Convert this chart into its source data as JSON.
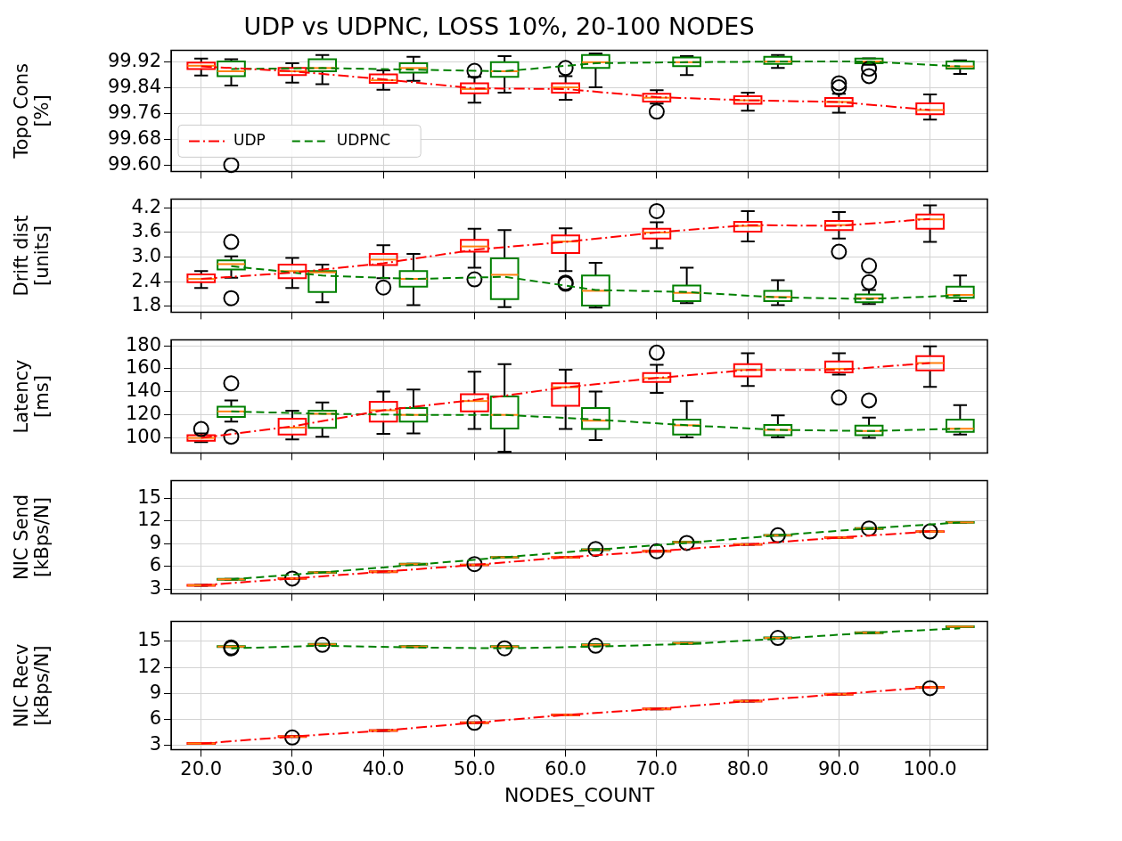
{
  "chart_data": [
    {
      "type": "box",
      "title": "UDP vs UDPNC, LOSS 10%, 20-100 NODES",
      "ylabel": "Topo Cons\n[%]",
      "xlim": [
        16.7,
        106.3
      ],
      "xticks": [
        {
          "value": 20,
          "label": null
        },
        {
          "value": 30,
          "label": null
        },
        {
          "value": 40,
          "label": null
        },
        {
          "value": 50,
          "label": null
        },
        {
          "value": 60,
          "label": null
        },
        {
          "value": 70,
          "label": null
        },
        {
          "value": 80,
          "label": null
        },
        {
          "value": 90,
          "label": null
        },
        {
          "value": 100,
          "label": null
        }
      ],
      "ylim": [
        99.58,
        99.955
      ],
      "yticks": [
        {
          "value": 99.6,
          "label": "99.60"
        },
        99.68,
        99.76,
        99.84,
        99.92
      ],
      "grid": true,
      "legend": "bottom left",
      "tick_labels": "y",
      "series": [
        {
          "type": "box",
          "color": "#ff0000",
          "x": [
            20,
            30,
            40,
            50,
            60,
            70,
            80,
            90,
            100
          ],
          "boxes": [
            {
              "low": 99.877,
              "q1": 99.897,
              "median": 99.907,
              "q3": 99.917,
              "high": 99.929
            },
            {
              "low": 99.855,
              "q1": 99.878,
              "median": 99.89,
              "q3": 99.9,
              "high": 99.915
            },
            {
              "low": 99.833,
              "q1": 99.854,
              "median": 99.862,
              "q3": 99.88,
              "high": 99.893
            },
            {
              "low": 99.793,
              "q1": 99.822,
              "median": 99.835,
              "q3": 99.853,
              "high": 99.873,
              "outliers": [
                99.891
              ]
            },
            {
              "low": 99.802,
              "q1": 99.824,
              "median": 99.84,
              "q3": 99.853,
              "high": 99.875,
              "outliers": [
                99.9
              ]
            },
            {
              "low": 99.79,
              "q1": 99.796,
              "median": 99.808,
              "q3": 99.82,
              "high": 99.831,
              "outliers": [
                99.765
              ]
            },
            {
              "low": 99.768,
              "q1": 99.789,
              "median": 99.8,
              "q3": 99.813,
              "high": 99.824
            },
            {
              "low": 99.762,
              "q1": 99.782,
              "median": 99.795,
              "q3": 99.807,
              "high": 99.82,
              "outliers": [
                99.84,
                99.853
              ]
            },
            {
              "low": 99.74,
              "q1": 99.757,
              "median": 99.77,
              "q3": 99.791,
              "high": 99.818
            }
          ]
        },
        {
          "type": "box",
          "color": "#008000",
          "x": [
            23.3,
            33.3,
            43.3,
            53.3,
            63.3,
            73.3,
            83.3,
            93.3,
            103.3
          ],
          "boxes": [
            {
              "low": 99.846,
              "q1": 99.875,
              "median": 99.89,
              "q3": 99.92,
              "high": 99.927,
              "outliers": [
                99.6
              ]
            },
            {
              "low": 99.85,
              "q1": 99.89,
              "median": 99.9,
              "q3": 99.927,
              "high": 99.94
            },
            {
              "low": 99.86,
              "q1": 99.886,
              "median": 99.9,
              "q3": 99.915,
              "high": 99.935
            },
            {
              "low": 99.824,
              "q1": 99.873,
              "median": 99.89,
              "q3": 99.918,
              "high": 99.937
            },
            {
              "low": 99.84,
              "q1": 99.9,
              "median": 99.918,
              "q3": 99.94,
              "high": 99.945
            },
            {
              "low": 99.878,
              "q1": 99.906,
              "median": 99.918,
              "q3": 99.933,
              "high": 99.937
            },
            {
              "low": 99.9,
              "q1": 99.913,
              "median": 99.92,
              "q3": 99.935,
              "high": 99.94
            },
            {
              "low": 99.91,
              "q1": 99.915,
              "median": 99.92,
              "q3": 99.929,
              "high": 99.93,
              "outliers": [
                99.875,
                99.898
              ]
            },
            {
              "low": 99.882,
              "q1": 99.898,
              "median": 99.905,
              "q3": 99.92,
              "high": 99.924
            }
          ]
        },
        {
          "type": "line",
          "name": "UDP",
          "color": "#ff0000",
          "line_style": "dashdot",
          "marker": "none",
          "x": [
            20,
            30,
            40,
            50,
            60,
            70,
            80,
            90,
            100
          ],
          "values": [
            99.905,
            99.89,
            99.865,
            99.837,
            99.835,
            99.81,
            99.8,
            99.795,
            99.77
          ]
        },
        {
          "type": "line",
          "name": "UDPNC",
          "color": "#008000",
          "line_style": "dashed",
          "marker": "none",
          "x": [
            23.3,
            33.3,
            43.3,
            53.3,
            63.3,
            73.3,
            83.3,
            93.3,
            103.3
          ],
          "values": [
            99.897,
            99.9,
            99.895,
            99.89,
            99.915,
            99.918,
            99.92,
            99.92,
            99.905
          ]
        }
      ]
    },
    {
      "type": "box",
      "ylabel": "Drift dist\n[units]",
      "xlim": [
        16.7,
        106.3
      ],
      "xticks": [
        {
          "value": 20,
          "label": null
        },
        {
          "value": 30,
          "label": null
        },
        {
          "value": 40,
          "label": null
        },
        {
          "value": 50,
          "label": null
        },
        {
          "value": 60,
          "label": null
        },
        {
          "value": 70,
          "label": null
        },
        {
          "value": 80,
          "label": null
        },
        {
          "value": 90,
          "label": null
        },
        {
          "value": 100,
          "label": null
        }
      ],
      "ylim": [
        1.66,
        4.41
      ],
      "yticks": [
        1.8,
        2.4,
        {
          "value": 3,
          "label": "3.0"
        },
        3.6,
        4.2
      ],
      "grid": true,
      "tick_labels": "y",
      "series": [
        {
          "type": "box",
          "color": "#ff0000",
          "x": [
            20,
            30,
            40,
            50,
            60,
            70,
            80,
            90,
            100
          ],
          "boxes": [
            {
              "low": 2.25,
              "q1": 2.39,
              "median": 2.47,
              "q3": 2.58,
              "high": 2.66
            },
            {
              "low": 2.25,
              "q1": 2.49,
              "median": 2.66,
              "q3": 2.82,
              "high": 2.98
            },
            {
              "low": 2.49,
              "q1": 2.81,
              "median": 2.94,
              "q3": 3.08,
              "high": 3.29,
              "outliers": [
                2.26
              ]
            },
            {
              "low": 2.74,
              "q1": 3.13,
              "median": 3.26,
              "q3": 3.42,
              "high": 3.69,
              "outliers": [
                2.46
              ]
            },
            {
              "low": 2.66,
              "q1": 3.1,
              "median": 3.38,
              "q3": 3.53,
              "high": 3.7,
              "outliers": [
                2.35,
                2.38
              ]
            },
            {
              "low": 3.22,
              "q1": 3.45,
              "median": 3.6,
              "q3": 3.69,
              "high": 3.85,
              "outliers": [
                4.12
              ]
            },
            {
              "low": 3.38,
              "q1": 3.62,
              "median": 3.76,
              "q3": 3.86,
              "high": 4.12
            },
            {
              "low": 3.45,
              "q1": 3.66,
              "median": 3.78,
              "q3": 3.88,
              "high": 4.1,
              "outliers": [
                3.13
              ]
            },
            {
              "low": 3.37,
              "q1": 3.69,
              "median": 3.92,
              "q3": 4.04,
              "high": 4.26
            }
          ]
        },
        {
          "type": "box",
          "color": "#008000",
          "x": [
            23.3,
            33.3,
            43.3,
            53.3,
            63.3,
            73.3,
            83.3,
            93.3,
            103.3
          ],
          "boxes": [
            {
              "low": 2.5,
              "q1": 2.7,
              "median": 2.83,
              "q3": 2.92,
              "high": 3.02,
              "outliers": [
                2.0,
                3.37
              ]
            },
            {
              "low": 1.9,
              "q1": 2.15,
              "median": 2.63,
              "q3": 2.66,
              "high": 2.82
            },
            {
              "low": 1.83,
              "q1": 2.28,
              "median": 2.47,
              "q3": 2.66,
              "high": 3.08
            },
            {
              "low": 1.78,
              "q1": 1.98,
              "median": 2.57,
              "q3": 2.97,
              "high": 3.66
            },
            {
              "low": 1.77,
              "q1": 1.82,
              "median": 2.18,
              "q3": 2.55,
              "high": 2.86
            },
            {
              "low": 1.88,
              "q1": 1.93,
              "median": 2.13,
              "q3": 2.31,
              "high": 2.74
            },
            {
              "low": 1.83,
              "q1": 1.93,
              "median": 2.03,
              "q3": 2.18,
              "high": 2.44
            },
            {
              "low": 1.86,
              "q1": 1.9,
              "median": 2.0,
              "q3": 2.09,
              "high": 2.2,
              "outliers": [
                2.39,
                2.79
              ]
            },
            {
              "low": 1.93,
              "q1": 2.01,
              "median": 2.08,
              "q3": 2.28,
              "high": 2.55
            }
          ]
        },
        {
          "type": "line",
          "color": "#ff0000",
          "line_style": "dashdot",
          "marker": "none",
          "x": [
            20,
            30,
            40,
            50,
            60,
            70,
            80,
            90,
            100
          ],
          "values": [
            2.47,
            2.62,
            2.85,
            3.18,
            3.37,
            3.6,
            3.78,
            3.76,
            3.93
          ]
        },
        {
          "type": "line",
          "color": "#008000",
          "line_style": "dashed",
          "marker": "none",
          "x": [
            23.3,
            33.3,
            43.3,
            53.3,
            63.3,
            73.3,
            83.3,
            93.3,
            103.3
          ],
          "values": [
            2.78,
            2.55,
            2.47,
            2.52,
            2.2,
            2.15,
            2.02,
            1.98,
            2.07
          ]
        }
      ]
    },
    {
      "type": "box",
      "ylabel": "Latency\n[ms]",
      "xlim": [
        16.7,
        106.3
      ],
      "xticks": [
        {
          "value": 20,
          "label": null
        },
        {
          "value": 30,
          "label": null
        },
        {
          "value": 40,
          "label": null
        },
        {
          "value": 50,
          "label": null
        },
        {
          "value": 60,
          "label": null
        },
        {
          "value": 70,
          "label": null
        },
        {
          "value": 80,
          "label": null
        },
        {
          "value": 90,
          "label": null
        },
        {
          "value": 100,
          "label": null
        }
      ],
      "ylim": [
        87,
        185
      ],
      "yticks": [
        100,
        120,
        140,
        160,
        180
      ],
      "grid": true,
      "tick_labels": "y",
      "series": [
        {
          "type": "box",
          "color": "#ff0000",
          "x": [
            20,
            30,
            40,
            50,
            60,
            70,
            80,
            90,
            100
          ],
          "boxes": [
            {
              "low": 96.4,
              "q1": 97.6,
              "median": 100,
              "q3": 102.3,
              "high": 104,
              "outliers": [
                107.7
              ]
            },
            {
              "low": 98.8,
              "q1": 102.9,
              "median": 109,
              "q3": 116.6,
              "high": 123.7
            },
            {
              "low": 103.5,
              "q1": 114.2,
              "median": 124,
              "q3": 131.4,
              "high": 140.3
            },
            {
              "low": 107.7,
              "q1": 123,
              "median": 132,
              "q3": 138,
              "high": 157.5
            },
            {
              "low": 107.7,
              "q1": 127.8,
              "median": 144,
              "q3": 147.4,
              "high": 159.2
            },
            {
              "low": 139,
              "q1": 148.6,
              "median": 152,
              "q3": 156.3,
              "high": 163.4,
              "outliers": [
                174
              ]
            },
            {
              "low": 145,
              "q1": 153.3,
              "median": 159,
              "q3": 164,
              "high": 173.5
            },
            {
              "low": 155,
              "q1": 156.9,
              "median": 160,
              "q3": 166.4,
              "high": 173.5,
              "outliers": [
                135
              ]
            },
            {
              "low": 144.4,
              "q1": 158.7,
              "median": 165,
              "q3": 171,
              "high": 179.4
            }
          ]
        },
        {
          "type": "box",
          "color": "#008000",
          "x": [
            23.3,
            33.3,
            43.3,
            53.3,
            63.3,
            73.3,
            83.3,
            93.3,
            103.3
          ],
          "boxes": [
            {
              "low": 114.2,
              "q1": 118.3,
              "median": 123,
              "q3": 127.2,
              "high": 132.6,
              "outliers": [
                101.1,
                147.4
              ]
            },
            {
              "low": 101,
              "q1": 108.8,
              "median": 121,
              "q3": 123.7,
              "high": 130.8
            },
            {
              "low": 104,
              "q1": 114.2,
              "median": 120,
              "q3": 126,
              "high": 142
            },
            {
              "low": 88,
              "q1": 108.2,
              "median": 120,
              "q3": 136,
              "high": 164
            },
            {
              "low": 98.2,
              "q1": 107.7,
              "median": 115,
              "q3": 126,
              "high": 140.3
            },
            {
              "low": 100.5,
              "q1": 103,
              "median": 111,
              "q3": 116,
              "high": 132
            },
            {
              "low": 100.5,
              "q1": 102.3,
              "median": 107,
              "q3": 111.2,
              "high": 119.5
            },
            {
              "low": 100,
              "q1": 102.3,
              "median": 106,
              "q3": 110.6,
              "high": 117.7,
              "outliers": [
                132.6
              ]
            },
            {
              "low": 103,
              "q1": 105.3,
              "median": 108,
              "q3": 116,
              "high": 128.4
            }
          ]
        },
        {
          "type": "line",
          "color": "#ff0000",
          "line_style": "dashdot",
          "marker": "none",
          "x": [
            20,
            30,
            40,
            50,
            60,
            70,
            80,
            90,
            100
          ],
          "values": [
            100,
            110,
            124,
            133,
            144,
            152,
            159,
            159,
            165
          ]
        },
        {
          "type": "line",
          "color": "#008000",
          "line_style": "dashed",
          "marker": "none",
          "x": [
            23.3,
            33.3,
            43.3,
            53.3,
            63.3,
            73.3,
            83.3,
            93.3,
            103.3
          ],
          "values": [
            123,
            121,
            120,
            120,
            116,
            111,
            107,
            106,
            108
          ]
        }
      ]
    },
    {
      "type": "box",
      "ylabel": "NIC Send\n[kBps/N]",
      "xlim": [
        16.7,
        106.3
      ],
      "xticks": [
        {
          "value": 20,
          "label": null
        },
        {
          "value": 30,
          "label": null
        },
        {
          "value": 40,
          "label": null
        },
        {
          "value": 50,
          "label": null
        },
        {
          "value": 60,
          "label": null
        },
        {
          "value": 70,
          "label": null
        },
        {
          "value": 80,
          "label": null
        },
        {
          "value": 90,
          "label": null
        },
        {
          "value": 100,
          "label": null
        }
      ],
      "ylim": [
        2.4,
        17.3
      ],
      "yticks": [
        3,
        6,
        9,
        12,
        15
      ],
      "grid": true,
      "tick_labels": "y",
      "series": [
        {
          "type": "box",
          "color": "#ff0000",
          "x": [
            20,
            30,
            40,
            50,
            60,
            70,
            80,
            90,
            100
          ],
          "boxes": [
            {
              "low": 3.45,
              "q1": 3.45,
              "median": 3.5,
              "q3": 3.55,
              "high": 3.55
            },
            {
              "low": 4.35,
              "q1": 4.35,
              "median": 4.4,
              "q3": 4.45,
              "high": 4.45,
              "outliers": [
                4.4
              ]
            },
            {
              "low": 5.25,
              "q1": 5.25,
              "median": 5.3,
              "q3": 5.35,
              "high": 5.35
            },
            {
              "low": 6.15,
              "q1": 6.15,
              "median": 6.2,
              "q3": 6.25,
              "high": 6.25,
              "outliers": [
                6.3
              ]
            },
            {
              "low": 7.15,
              "q1": 7.15,
              "median": 7.2,
              "q3": 7.25,
              "high": 7.25
            },
            {
              "low": 7.95,
              "q1": 7.95,
              "median": 8.0,
              "q3": 8.05,
              "high": 8.05,
              "outliers": [
                8.0
              ]
            },
            {
              "low": 8.85,
              "q1": 8.85,
              "median": 8.9,
              "q3": 8.95,
              "high": 8.95
            },
            {
              "low": 9.75,
              "q1": 9.75,
              "median": 9.8,
              "q3": 9.85,
              "high": 9.85
            },
            {
              "low": 10.55,
              "q1": 10.55,
              "median": 10.6,
              "q3": 10.65,
              "high": 10.65,
              "outliers": [
                10.6
              ]
            }
          ]
        },
        {
          "type": "box",
          "color": "#008000",
          "x": [
            23.3,
            33.3,
            43.3,
            53.3,
            63.3,
            73.3,
            83.3,
            93.3,
            103.3
          ],
          "boxes": [
            {
              "low": 4.25,
              "q1": 4.25,
              "median": 4.3,
              "q3": 4.35,
              "high": 4.35
            },
            {
              "low": 5.15,
              "q1": 5.15,
              "median": 5.2,
              "q3": 5.25,
              "high": 5.25
            },
            {
              "low": 6.25,
              "q1": 6.25,
              "median": 6.3,
              "q3": 6.35,
              "high": 6.35
            },
            {
              "low": 7.15,
              "q1": 7.15,
              "median": 7.2,
              "q3": 7.25,
              "high": 7.25
            },
            {
              "low": 8.15,
              "q1": 8.15,
              "median": 8.2,
              "q3": 8.25,
              "high": 8.25,
              "outliers": [
                8.3
              ]
            },
            {
              "low": 9.15,
              "q1": 9.15,
              "median": 9.2,
              "q3": 9.25,
              "high": 9.25,
              "outliers": [
                9.1
              ]
            },
            {
              "low": 10.05,
              "q1": 10.05,
              "median": 10.1,
              "q3": 10.15,
              "high": 10.15,
              "outliers": [
                10.1
              ]
            },
            {
              "low": 10.95,
              "q1": 10.95,
              "median": 11.0,
              "q3": 11.05,
              "high": 11.05,
              "outliers": [
                11.0
              ]
            },
            {
              "low": 11.75,
              "q1": 11.75,
              "median": 11.8,
              "q3": 11.85,
              "high": 11.85
            }
          ]
        },
        {
          "type": "line",
          "color": "#ff0000",
          "line_style": "dashdot",
          "marker": "none",
          "x": [
            20,
            30,
            40,
            50,
            60,
            70,
            80,
            90,
            100
          ],
          "values": [
            3.5,
            4.4,
            5.3,
            6.2,
            7.2,
            8.0,
            8.9,
            9.8,
            10.6
          ]
        },
        {
          "type": "line",
          "color": "#008000",
          "line_style": "dashed",
          "marker": "none",
          "x": [
            23.3,
            33.3,
            43.3,
            53.3,
            63.3,
            73.3,
            83.3,
            93.3,
            103.3
          ],
          "values": [
            4.3,
            5.2,
            6.2,
            7.2,
            8.2,
            9.1,
            10.1,
            11.0,
            11.8
          ]
        }
      ]
    },
    {
      "type": "box",
      "ylabel": "NIC Recv\n[kBps/N]",
      "xlabel": "NODES_COUNT",
      "xlim": [
        16.7,
        106.3
      ],
      "xticks": [
        {
          "value": 20,
          "label": "20.0"
        },
        {
          "value": 30,
          "label": "30.0"
        },
        {
          "value": 40,
          "label": "40.0"
        },
        {
          "value": 50,
          "label": "50.0"
        },
        {
          "value": 60,
          "label": "60.0"
        },
        {
          "value": 70,
          "label": "70.0"
        },
        {
          "value": 80,
          "label": "80.0"
        },
        {
          "value": 90,
          "label": "90.0"
        },
        {
          "value": 100,
          "label": "100.0"
        }
      ],
      "ylim": [
        2.5,
        17.3
      ],
      "yticks": [
        3,
        6,
        9,
        12,
        15
      ],
      "grid": true,
      "series": [
        {
          "type": "box",
          "color": "#ff0000",
          "x": [
            20,
            30,
            40,
            50,
            60,
            70,
            80,
            90,
            100
          ],
          "boxes": [
            {
              "low": 3.15,
              "q1": 3.15,
              "median": 3.2,
              "q3": 3.25,
              "high": 3.25
            },
            {
              "low": 3.95,
              "q1": 3.95,
              "median": 4.0,
              "q3": 4.05,
              "high": 4.05,
              "outliers": [
                3.9
              ]
            },
            {
              "low": 4.65,
              "q1": 4.65,
              "median": 4.7,
              "q3": 4.75,
              "high": 4.75
            },
            {
              "low": 5.55,
              "q1": 5.55,
              "median": 5.6,
              "q3": 5.65,
              "high": 5.65,
              "outliers": [
                5.6
              ]
            },
            {
              "low": 6.45,
              "q1": 6.45,
              "median": 6.5,
              "q3": 6.55,
              "high": 6.55
            },
            {
              "low": 7.15,
              "q1": 7.15,
              "median": 7.2,
              "q3": 7.25,
              "high": 7.25
            },
            {
              "low": 8.05,
              "q1": 8.05,
              "median": 8.1,
              "q3": 8.15,
              "high": 8.15
            },
            {
              "low": 8.85,
              "q1": 8.85,
              "median": 8.9,
              "q3": 8.95,
              "high": 8.95
            },
            {
              "low": 9.65,
              "q1": 9.65,
              "median": 9.7,
              "q3": 9.75,
              "high": 9.75,
              "outliers": [
                9.6
              ]
            }
          ]
        },
        {
          "type": "box",
          "color": "#008000",
          "x": [
            23.3,
            33.3,
            43.3,
            53.3,
            63.3,
            73.3,
            83.3,
            93.3,
            103.3
          ],
          "boxes": [
            {
              "low": 14.35,
              "q1": 14.35,
              "median": 14.4,
              "q3": 14.45,
              "high": 14.45,
              "outliers": [
                14.2,
                14.3
              ]
            },
            {
              "low": 14.6,
              "q1": 14.6,
              "median": 14.65,
              "q3": 14.7,
              "high": 14.7,
              "outliers": [
                14.6
              ]
            },
            {
              "low": 14.35,
              "q1": 14.35,
              "median": 14.4,
              "q3": 14.45,
              "high": 14.45
            },
            {
              "low": 14.35,
              "q1": 14.35,
              "median": 14.4,
              "q3": 14.45,
              "high": 14.45,
              "outliers": [
                14.2
              ]
            },
            {
              "low": 14.55,
              "q1": 14.55,
              "median": 14.6,
              "q3": 14.65,
              "high": 14.65,
              "outliers": [
                14.5
              ]
            },
            {
              "low": 14.75,
              "q1": 14.75,
              "median": 14.8,
              "q3": 14.85,
              "high": 14.85
            },
            {
              "low": 15.35,
              "q1": 15.35,
              "median": 15.4,
              "q3": 15.45,
              "high": 15.45,
              "outliers": [
                15.4
              ]
            },
            {
              "low": 15.95,
              "q1": 15.95,
              "median": 16.0,
              "q3": 16.05,
              "high": 16.05
            },
            {
              "low": 16.65,
              "q1": 16.65,
              "median": 16.7,
              "q3": 16.75,
              "high": 16.75
            }
          ]
        },
        {
          "type": "line",
          "color": "#ff0000",
          "line_style": "dashdot",
          "marker": "none",
          "x": [
            20,
            30,
            40,
            50,
            60,
            70,
            80,
            90,
            100
          ],
          "values": [
            3.2,
            4.0,
            4.7,
            5.6,
            6.5,
            7.2,
            8.1,
            8.9,
            9.7
          ]
        },
        {
          "type": "line",
          "color": "#008000",
          "line_style": "dashed",
          "marker": "none",
          "x": [
            23.3,
            33.3,
            43.3,
            53.3,
            63.3,
            73.3,
            83.3,
            93.3,
            103.3
          ],
          "values": [
            14.2,
            14.5,
            14.3,
            14.2,
            14.4,
            14.7,
            15.3,
            16.0,
            16.5
          ]
        }
      ]
    }
  ]
}
